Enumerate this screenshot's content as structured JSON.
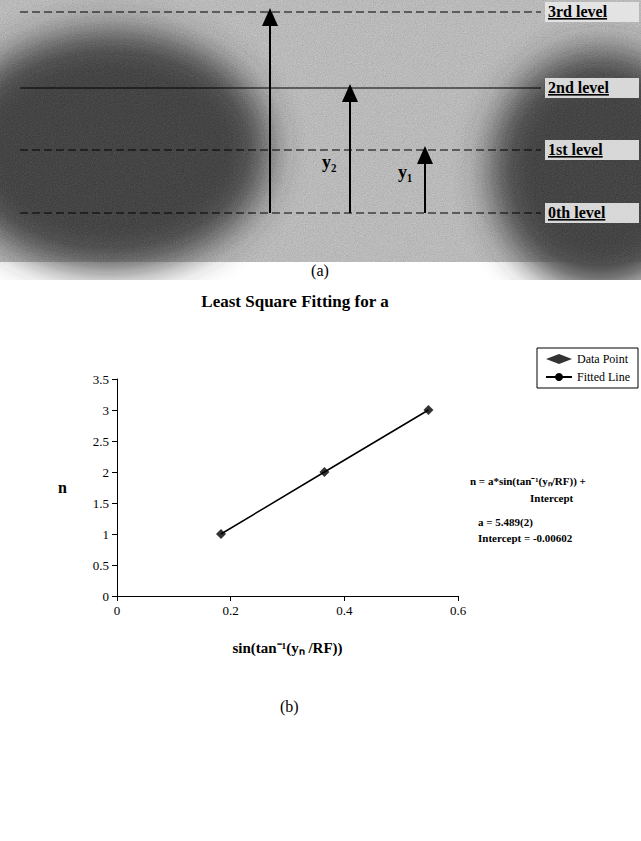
{
  "panel_a": {
    "caption": "(a)",
    "levels": [
      "3rd level",
      "2nd level",
      "1st level",
      "0th level"
    ],
    "arrows": [
      "y₂",
      "y₁"
    ]
  },
  "chart_data": {
    "type": "scatter",
    "title": "Least Square Fitting for a",
    "x_label": "sin(tan⁻¹(yₙ /RF))",
    "y_label": "n",
    "x": [
      0.183,
      0.365,
      0.548
    ],
    "series": [
      {
        "name": "Data Point",
        "type": "scatter",
        "color": "#000000",
        "marker": "diamond",
        "values": [
          1,
          2,
          3
        ]
      },
      {
        "name": "Fitted Line",
        "type": "line",
        "color": "#000000",
        "line_style": "solid",
        "values": [
          1,
          2,
          3
        ]
      }
    ],
    "xlim": [
      0,
      0.6
    ],
    "xticks": [
      0,
      0.2,
      0.4,
      0.6
    ],
    "ylim": [
      0,
      3.5
    ],
    "yticks": [
      0,
      0.5,
      1,
      1.5,
      2,
      2.5,
      3,
      3.5
    ],
    "grid": false,
    "legend": "top-right",
    "annotations": [
      "n = a*sin(tan⁻¹(yₙ/RF)) +",
      "Intercept",
      "a = 5.489(2)",
      "Intercept = -0.00602"
    ],
    "caption": "(b)"
  }
}
